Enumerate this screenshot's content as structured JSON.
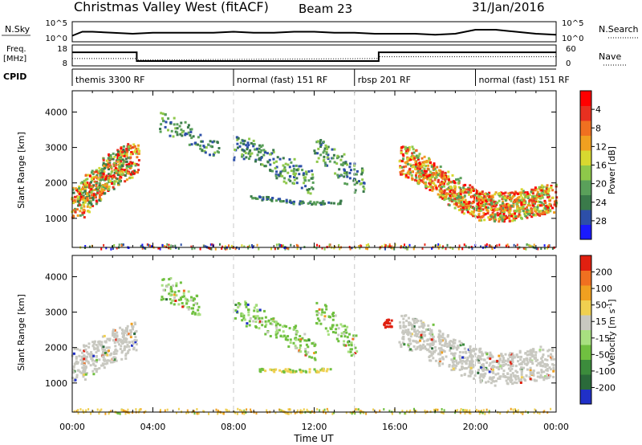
{
  "header": {
    "title": "Christmas Valley West (fitACF)",
    "beam": "Beam 23",
    "date": "31/Jan/2016"
  },
  "chart_data": [
    {
      "type": "line",
      "panel": "noise",
      "left_label": "N.Sky",
      "right_label": "N.Search",
      "y_ticks_left": [
        "10^5",
        "10^0"
      ],
      "y_ticks_right": [
        "10^5",
        "10^0"
      ],
      "x_range_hours": [
        0,
        24
      ],
      "series": [
        {
          "style": "solid",
          "x": [
            0,
            0.5,
            1,
            2,
            3,
            4,
            5,
            6,
            7,
            8,
            9,
            10,
            11,
            12,
            13,
            14,
            15,
            16,
            17,
            18,
            19,
            20,
            21,
            22,
            23,
            24
          ],
          "values": [
            0.3,
            0.5,
            0.5,
            0.45,
            0.4,
            0.45,
            0.45,
            0.45,
            0.45,
            0.5,
            0.45,
            0.45,
            0.5,
            0.5,
            0.45,
            0.45,
            0.4,
            0.4,
            0.4,
            0.35,
            0.4,
            0.6,
            0.6,
            0.5,
            0.4,
            0.35
          ]
        }
      ]
    },
    {
      "type": "line",
      "panel": "frequency",
      "left_label": "Freq. [MHz]",
      "right_label": "Nave",
      "y_ticks_left": [
        "18",
        "8"
      ],
      "y_ticks_right": [
        "60",
        "0"
      ],
      "x_range_hours": [
        0,
        24
      ],
      "series": [
        {
          "style": "solid",
          "x": [
            0,
            3.2,
            3.2,
            15.2,
            15.2,
            24
          ],
          "values": [
            14.5,
            14.5,
            10.3,
            10.3,
            14.5,
            14.5
          ]
        },
        {
          "style": "dotted",
          "x": [
            0,
            3.2,
            3.2,
            15.2,
            15.2,
            24
          ],
          "values": [
            11.5,
            11.5,
            10.8,
            11.5,
            12.4,
            12.4
          ]
        }
      ]
    },
    {
      "type": "table",
      "panel": "cpid",
      "left_label": "CPID",
      "segments": [
        {
          "label": "themis 3300 RF",
          "start": 0,
          "end": 8
        },
        {
          "label": "normal (fast) 151 RF",
          "start": 8,
          "end": 14
        },
        {
          "label": "rbsp 201 RF",
          "start": 14,
          "end": 20
        },
        {
          "label": "normal (fast) 151 RF",
          "start": 20,
          "end": 24
        }
      ]
    },
    {
      "type": "heatmap",
      "panel": "power",
      "ylabel": "Slant Range [km]",
      "yticks": [
        1000,
        2000,
        3000,
        4000
      ],
      "ylim": [
        180,
        4600
      ],
      "x_range_hours": [
        0,
        24
      ],
      "colorbar": {
        "label": "Power [dB]",
        "ticks": [
          "4",
          "8",
          "12",
          "16",
          "20",
          "24",
          "28"
        ],
        "colors": [
          "#1a1aff",
          "#2d4fa8",
          "#3a7a4a",
          "#5aa05a",
          "#8ec84a",
          "#d8d830",
          "#f0a020",
          "#f07020",
          "#e83020",
          "#ff0000"
        ]
      },
      "band_xs": [
        0.25,
        0.55,
        0.85,
        1.15,
        1.45,
        1.75,
        2.05,
        2.35,
        2.65,
        2.95
      ],
      "band_ys": [
        1450,
        1620,
        1800,
        1980,
        2130,
        2280,
        2410,
        2520,
        2610,
        2680
      ],
      "band2_xs": [
        16.5,
        16.8,
        17.1,
        17.4,
        17.7,
        18.0,
        18.3,
        18.6,
        18.9,
        19.2,
        19.5,
        19.8,
        20.1,
        20.4,
        20.7,
        21.0,
        21.3,
        21.6,
        21.9,
        22.2,
        22.5,
        22.8,
        23.1,
        23.4,
        23.7
      ],
      "band2_ys": [
        2650,
        2580,
        2480,
        2390,
        2260,
        2130,
        2010,
        1880,
        1770,
        1650,
        1560,
        1480,
        1420,
        1380,
        1360,
        1350,
        1350,
        1360,
        1380,
        1420,
        1450,
        1480,
        1520,
        1560,
        1600
      ],
      "band2_color_order": [
        1,
        2,
        3,
        4,
        5,
        6,
        7,
        8,
        9
      ],
      "arc_xs": [
        8.2,
        8.7,
        9.2,
        9.7,
        10.2,
        10.7,
        11.2,
        11.7,
        12.2,
        12.7,
        13.2,
        13.7,
        14.2
      ],
      "arc_ys": [
        3000,
        2950,
        2820,
        2680,
        2500,
        2360,
        2200,
        2060,
        2950,
        2750,
        2520,
        2300,
        2100
      ],
      "patch_xs": [
        4.5,
        5.0,
        5.5,
        6.0,
        6.5,
        7.0
      ],
      "patch_ys": [
        3750,
        3600,
        3500,
        3300,
        3150,
        2950
      ],
      "line_xs": [
        9.0,
        9.5,
        10.0,
        10.5,
        11.0,
        11.5,
        12.0,
        12.5,
        13.0
      ],
      "line_ys": [
        1620,
        1590,
        1560,
        1520,
        1480,
        1470,
        1460,
        1470,
        1480
      ],
      "ground_scatter_range": 230
    },
    {
      "type": "heatmap",
      "panel": "velocity",
      "ylabel": "Slant Range [km]",
      "yticks": [
        1000,
        2000,
        3000,
        4000
      ],
      "ylim": [
        180,
        4600
      ],
      "x_range_hours": [
        0,
        24
      ],
      "xticks": [
        "00:00",
        "04:00",
        "08:00",
        "12:00",
        "16:00",
        "20:00",
        "00:00"
      ],
      "xlabel": "Time UT",
      "colorbar": {
        "label": "Velocity [m s",
        "label_sup": "-1",
        "label_tail": "]",
        "ticks": [
          "200",
          "100",
          "50",
          "15",
          "-15",
          "-50",
          "-100",
          "-200"
        ],
        "colors": [
          "#2030c8",
          "#2a6a3a",
          "#3c8c3c",
          "#70c040",
          "#a8e080",
          "#c8c8c0",
          "#f0d050",
          "#f0a020",
          "#f07020",
          "#e02010"
        ]
      },
      "gray_xs": [
        0.3,
        0.8,
        1.3,
        1.8,
        2.3,
        2.8,
        16.5,
        17.0,
        17.5,
        18.0,
        18.5,
        19.0,
        19.5,
        20.0,
        20.5,
        21.0,
        21.5,
        22.0,
        22.5,
        23.0,
        23.5
      ],
      "gray_ys": [
        1550,
        1700,
        1850,
        2000,
        2150,
        2300,
        2500,
        2400,
        2250,
        2100,
        1950,
        1800,
        1650,
        1550,
        1450,
        1400,
        1420,
        1450,
        1500,
        1550,
        1600
      ],
      "green_xs": [
        4.6,
        5.1,
        5.6,
        6.1,
        8.3,
        8.8,
        9.3,
        9.8,
        10.3,
        10.8,
        11.3,
        11.8,
        12.3,
        12.8,
        13.3,
        13.8
      ],
      "green_ys": [
        3700,
        3550,
        3400,
        3200,
        3050,
        2950,
        2800,
        2650,
        2500,
        2350,
        2200,
        2000,
        3000,
        2700,
        2400,
        2100
      ],
      "red_patch": {
        "x": 15.6,
        "y": 2700
      },
      "line_xs": [
        9.5,
        10.0,
        10.5,
        11.0,
        11.5,
        12.0,
        12.5
      ],
      "line_ys": [
        1400,
        1390,
        1380,
        1370,
        1370,
        1380,
        1390
      ],
      "ground_scatter_range": 230
    }
  ]
}
